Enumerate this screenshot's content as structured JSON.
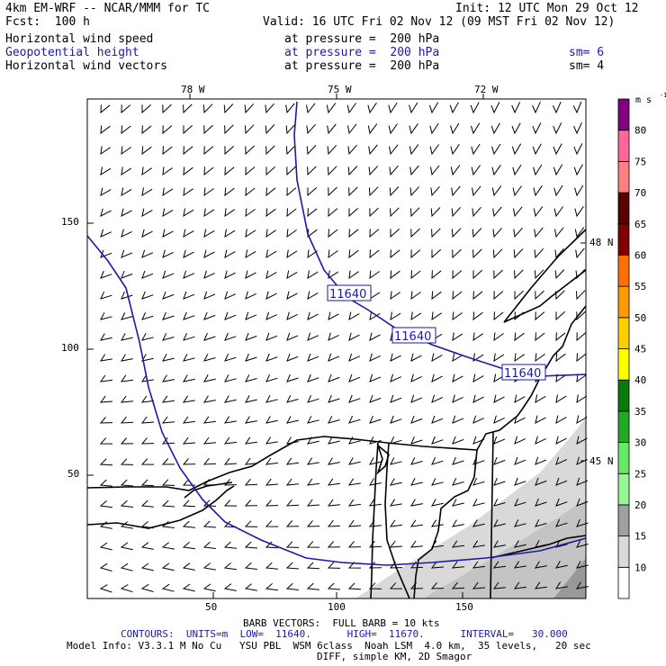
{
  "header": {
    "title": "4km EM-WRF -- NCAR/MMM for TC",
    "init": "Init: 12 UTC Mon 29 Oct 12",
    "fcst": "Fcst:  100 h",
    "valid": "Valid: 16 UTC Fri 02 Nov 12 (09 MST Fri 02 Nov 12)",
    "fields": [
      {
        "name": "Horizontal wind speed",
        "level": "at pressure =  200 hPa",
        "sm": ""
      },
      {
        "name": "Geopotential height",
        "level": "at pressure =  200 hPa",
        "sm": "sm= 6"
      },
      {
        "name": "Horizontal wind vectors",
        "level": "at pressure =  200 hPa",
        "sm": "sm= 4"
      }
    ]
  },
  "map": {
    "lon_labels": [
      "78 W",
      "75 W",
      "72 W"
    ],
    "lat_labels": [
      "48 N",
      "45 N"
    ],
    "y_ticks": [
      "150",
      "100",
      "50"
    ],
    "x_ticks": [
      "50",
      "100",
      "150"
    ],
    "contour_labels": [
      "11640",
      "11640",
      "11640"
    ],
    "colors": {
      "contour": "#1a1aa8",
      "shade_light": "#d9d9d9",
      "shade_mid": "#aaaaaa",
      "shade_dark": "#888888"
    }
  },
  "colorbar": {
    "units": "m s",
    "units_exp": "-1",
    "labels": [
      "80",
      "75",
      "70",
      "65",
      "60",
      "55",
      "50",
      "45",
      "40",
      "35",
      "30",
      "25",
      "20",
      "15",
      "10"
    ],
    "colors": [
      "#ffffff",
      "#d9d9d9",
      "#a0a0a0",
      "#98f598",
      "#68e868",
      "#22aa22",
      "#0a7a0a",
      "#ffff00",
      "#ffd000",
      "#ff9a00",
      "#ff7000",
      "#800000",
      "#5a0000",
      "#ff8080",
      "#ff6699",
      "#800080"
    ]
  },
  "footer": {
    "barb": "BARB VECTORS:  FULL BARB = 10 kts",
    "contours": "CONTOURS:  UNITS=m  LOW=  11640.      HIGH=  11670.      INTERVAL=   30.000",
    "model_info": "Model Info: V3.3.1 M No Cu   YSU PBL  WSM 6class  Noah LSM  4.0 km,  35 levels,   20 sec",
    "diff": "DIFF, simple KM, 2D Smagor"
  }
}
